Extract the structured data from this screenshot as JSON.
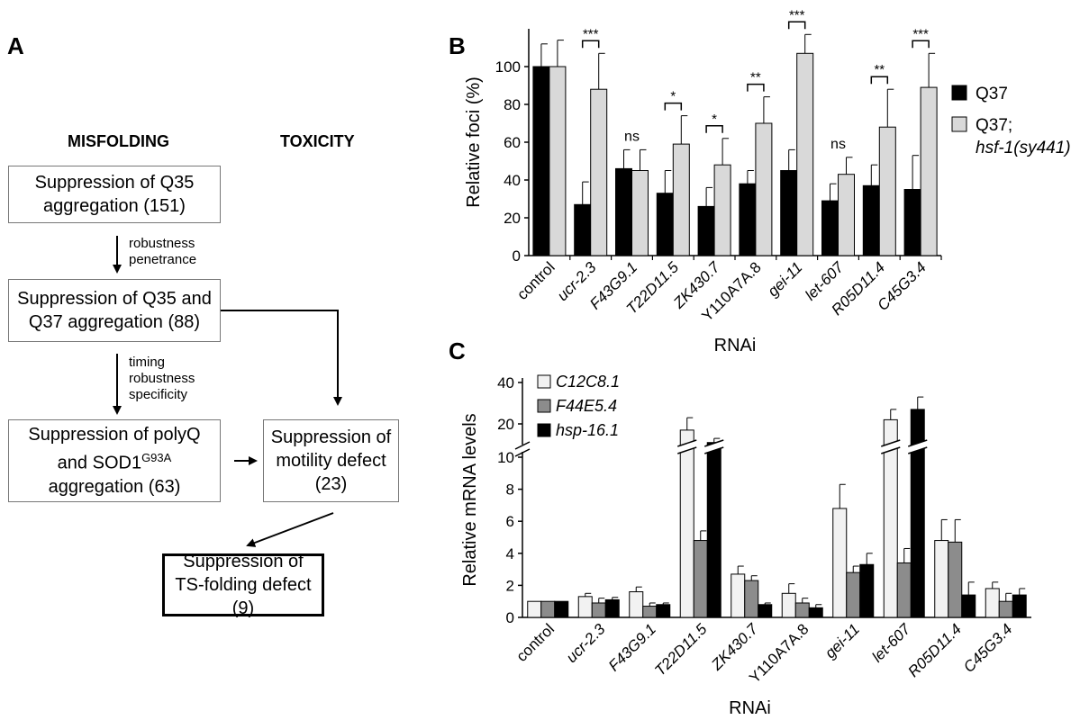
{
  "panel_a": {
    "letter": "A",
    "header_left": "MISFOLDING",
    "header_right": "TOXICITY",
    "box1": "Suppression of Q35 aggregation (151)",
    "arrow1_label": [
      "robustness",
      "penetrance"
    ],
    "box2": "Suppression of Q35 and Q37 aggregation (88)",
    "arrow2_label": [
      "timing",
      "robustness",
      "specificity"
    ],
    "box3_line1": "Suppression of polyQ",
    "box3_line2": "and SOD1",
    "box3_sup": "G93A",
    "box3_line3": "aggregation (63)",
    "box4_line1": "Suppression of",
    "box4_line2": "motility defect",
    "box4_line3": "(23)",
    "box5_line1": "Suppression of",
    "box5_line2": "TS-folding defect (9)"
  },
  "chart_data": [
    {
      "panel": "B",
      "type": "bar",
      "ylabel": "Relative foci (%)",
      "xlabel": "RNAi",
      "ylim": [
        0,
        120
      ],
      "yticks": [
        0,
        20,
        40,
        60,
        80,
        100
      ],
      "categories": [
        "control",
        "ucr-2.3",
        "F43G9.1",
        "T22D11.5",
        "ZK430.7",
        "Y110A7A.8",
        "gei-11",
        "let-607",
        "R05D11.4",
        "C45G3.4"
      ],
      "italic_categories": [
        false,
        true,
        true,
        true,
        true,
        false,
        true,
        true,
        true,
        true
      ],
      "series": [
        {
          "name": "Q37",
          "color": "#000000",
          "values": [
            100,
            27,
            46,
            33,
            26,
            38,
            45,
            29,
            37,
            35
          ],
          "errors": [
            12,
            12,
            10,
            12,
            10,
            7,
            11,
            9,
            11,
            18
          ]
        },
        {
          "name_line1": "Q37;",
          "name_line2": "hsf-1(sy441)",
          "color": "#d9d9d9",
          "values": [
            100,
            88,
            45,
            59,
            48,
            70,
            107,
            43,
            68,
            89
          ],
          "errors": [
            14,
            19,
            11,
            15,
            14,
            14,
            10,
            9,
            20,
            18
          ]
        }
      ],
      "significance": [
        "",
        "***",
        "ns",
        "*",
        "*",
        "**",
        "***",
        "ns",
        "**",
        "***"
      ],
      "legend": "right"
    },
    {
      "panel": "C",
      "type": "bar",
      "ylabel": "Relative mRNA levels",
      "xlabel": "RNAi",
      "broken_axis": true,
      "yticks_lower": [
        0,
        2,
        4,
        6,
        8,
        10
      ],
      "yticks_upper": [
        20,
        40
      ],
      "categories": [
        "control",
        "ucr-2.3",
        "F43G9.1",
        "T22D11.5",
        "ZK430.7",
        "Y110A7A.8",
        "gei-11",
        "let-607",
        "R05D11.4",
        "C45G3.4"
      ],
      "italic_categories": [
        false,
        true,
        true,
        true,
        true,
        false,
        true,
        true,
        true,
        true
      ],
      "series": [
        {
          "name": "C12C8.1",
          "color": "#f2f2f2",
          "values": [
            1.0,
            1.3,
            1.6,
            17,
            2.7,
            1.5,
            6.8,
            22,
            4.8,
            1.8
          ],
          "errors": [
            0,
            0.2,
            0.3,
            6,
            0.5,
            0.6,
            1.5,
            5,
            1.3,
            0.4
          ]
        },
        {
          "name": "F44E5.4",
          "color": "#8c8c8c",
          "values": [
            1.0,
            0.9,
            0.7,
            4.8,
            2.3,
            0.9,
            2.8,
            3.4,
            4.7,
            1.0
          ],
          "errors": [
            0,
            0.3,
            0.2,
            0.6,
            0.3,
            0.3,
            0.4,
            0.9,
            1.4,
            0.5
          ]
        },
        {
          "name": "hsp-16.1",
          "color": "#000000",
          "values": [
            1.0,
            1.1,
            0.8,
            11,
            0.8,
            0.6,
            3.3,
            27,
            1.4,
            1.4
          ],
          "errors": [
            0,
            0.15,
            0.1,
            2,
            0.1,
            0.2,
            0.7,
            6,
            0.8,
            0.4
          ]
        }
      ],
      "legend": "top-left"
    }
  ]
}
